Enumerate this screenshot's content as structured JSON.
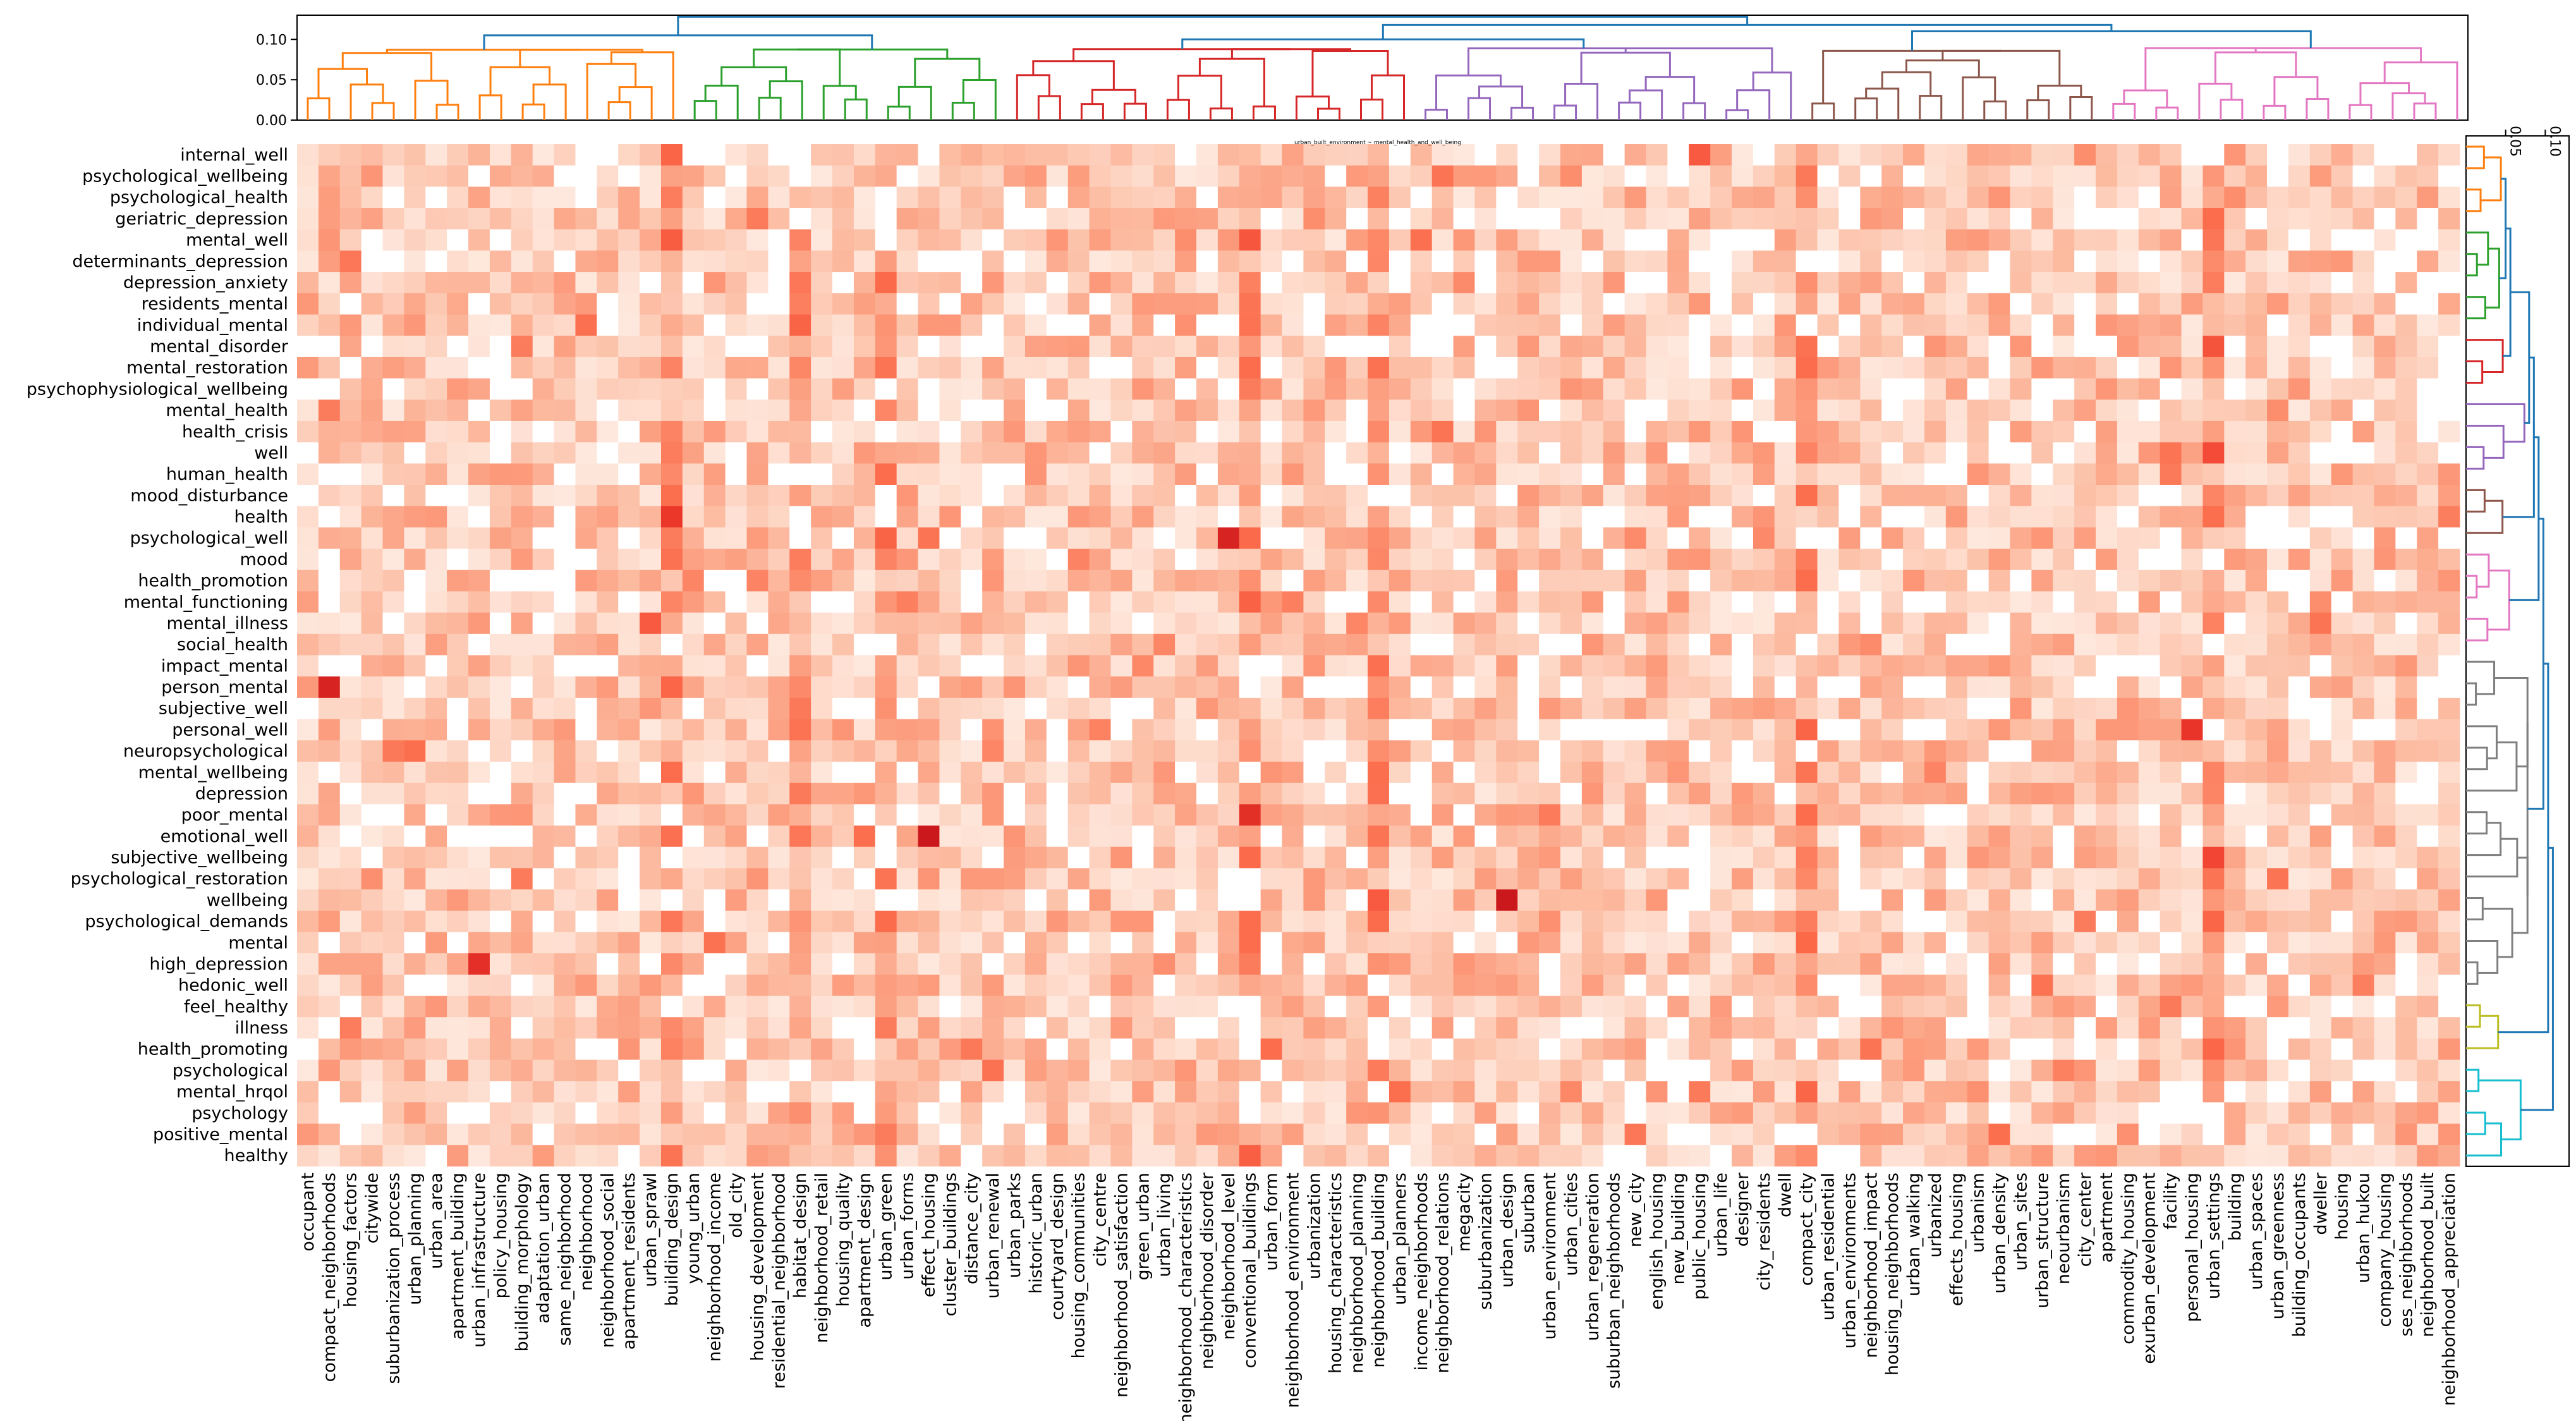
{
  "chart_data": {
    "type": "heatmap",
    "title": "urban_built_environment ~ mental_health_and_well_being",
    "colormap": "Reds",
    "rows": [
      "internal_well",
      "psychological_wellbeing",
      "psychological_health",
      "geriatric_depression",
      "mental_well",
      "determinants_depression",
      "depression_anxiety",
      "residents_mental",
      "individual_mental",
      "mental_disorder",
      "mental_restoration",
      "psychophysiological_wellbeing",
      "mental_health",
      "health_crisis",
      "well",
      "human_health",
      "mood_disturbance",
      "health",
      "psychological_well",
      "mood",
      "health_promotion",
      "mental_functioning",
      "mental_illness",
      "social_health",
      "impact_mental",
      "person_mental",
      "subjective_well",
      "personal_well",
      "neuropsychological",
      "mental_wellbeing",
      "depression",
      "poor_mental",
      "emotional_well",
      "subjective_wellbeing",
      "psychological_restoration",
      "wellbeing",
      "psychological_demands",
      "mental",
      "high_depression",
      "hedonic_well",
      "feel_healthy",
      "illness",
      "health_promoting",
      "psychological",
      "mental_hrqol",
      "psychology",
      "positive_mental",
      "healthy"
    ],
    "columns": [
      "occupant",
      "compact_neighborhoods",
      "housing_factors",
      "citywide",
      "suburbanization_process",
      "urban_planning",
      "urban_area",
      "apartment_building",
      "urban_infrastructure",
      "policy_housing",
      "building_morphology",
      "adaptation_urban",
      "same_neighborhood",
      "neighborhood",
      "neighborhood_social",
      "apartment_residents",
      "urban_sprawl",
      "building_design",
      "young_urban",
      "neighborhood_income",
      "old_city",
      "housing_development",
      "residential_neighborhood",
      "habitat_design",
      "neighborhood_retail",
      "housing_quality",
      "apartment_design",
      "urban_green",
      "urban_forms",
      "effect_housing",
      "cluster_buildings",
      "distance_city",
      "urban_renewal",
      "urban_parks",
      "historic_urban",
      "courtyard_design",
      "housing_communities",
      "city_centre",
      "neighborhood_satisfaction",
      "green_urban",
      "urban_living",
      "neighborhood_characteristics",
      "neighborhood_disorder",
      "neighborhood_level",
      "conventional_buildings",
      "urban_form",
      "neighborhood_environment",
      "urbanization",
      "housing_characteristics",
      "neighborhood_planning",
      "neighborhood_building",
      "urban_planners",
      "income_neighborhoods",
      "neighborhood_relations",
      "megacity",
      "suburbanization",
      "urban_design",
      "suburban",
      "urban_environment",
      "urban_cities",
      "urban_regeneration",
      "suburban_neighborhoods",
      "new_city",
      "english_housing",
      "new_building",
      "public_housing",
      "urban_life",
      "designer",
      "city_residents",
      "dwell",
      "compact_city",
      "urban_residential",
      "urban_environments",
      "neighborhood_impact",
      "housing_neighborhoods",
      "urban_walking",
      "urbanized",
      "effects_housing",
      "urbanism",
      "urban_density",
      "urban_sites",
      "urban_structure",
      "neourbanism",
      "city_center",
      "apartment",
      "commodity_housing",
      "exurban_development",
      "facility",
      "personal_housing",
      "urban_settings",
      "building",
      "urban_spaces",
      "urban_greenness",
      "building_occupants",
      "dweller",
      "housing",
      "urban_hukou",
      "company_housing",
      "ses_neighborhoods",
      "neighborhood_built",
      "neighborhood_appreciation"
    ],
    "value_range": [
      0,
      1
    ],
    "strong_columns": [
      "building_design",
      "habitat_design",
      "urban_green",
      "conventional_buildings",
      "neighborhood_building",
      "compact_city",
      "urban_settings"
    ],
    "hotspots": [
      {
        "row": "person_mental",
        "column": "compact_neighborhoods",
        "value": 0.95
      },
      {
        "row": "emotional_well",
        "column": "effect_housing",
        "value": 1.0
      },
      {
        "row": "wellbeing",
        "column": "urban_design",
        "value": 1.0
      },
      {
        "row": "psychological_well",
        "column": "neighborhood_level",
        "value": 0.95
      },
      {
        "row": "high_depression",
        "column": "urban_infrastructure",
        "value": 0.9
      },
      {
        "row": "personal_well",
        "column": "personal_housing",
        "value": 0.88
      },
      {
        "row": "mental_illness",
        "column": "urban_sprawl",
        "value": 0.75
      },
      {
        "row": "internal_well",
        "column": "public_housing",
        "value": 0.75
      }
    ],
    "col_dendrogram": {
      "yticks": [
        "0.00",
        "0.05",
        "0.10"
      ],
      "ylim": [
        0,
        0.13
      ],
      "clusters": [
        {
          "color": "#ff7f0e",
          "size": 18
        },
        {
          "color": "#2ca02c",
          "size": 15
        },
        {
          "color": "#d62728",
          "size": 19
        },
        {
          "color": "#9467bd",
          "size": 18
        },
        {
          "color": "#8c564b",
          "size": 14
        },
        {
          "color": "#e377c2",
          "size": 17
        }
      ],
      "link_color": "#1f77b4"
    },
    "row_dendrogram": {
      "xticks": [
        "0.05",
        "0.10"
      ],
      "xlim": [
        0,
        0.13
      ],
      "clusters": [
        {
          "color": "#ff7f0e",
          "size": 4
        },
        {
          "color": "#2ca02c",
          "size": 5
        },
        {
          "color": "#d62728",
          "size": 3
        },
        {
          "color": "#9467bd",
          "size": 4
        },
        {
          "color": "#8c564b",
          "size": 3
        },
        {
          "color": "#e377c2",
          "size": 5
        },
        {
          "color": "#7f7f7f",
          "size": 16
        },
        {
          "color": "#bcbd22",
          "size": 3
        },
        {
          "color": "#17becf",
          "size": 5
        }
      ],
      "link_color": "#1f77b4"
    }
  }
}
